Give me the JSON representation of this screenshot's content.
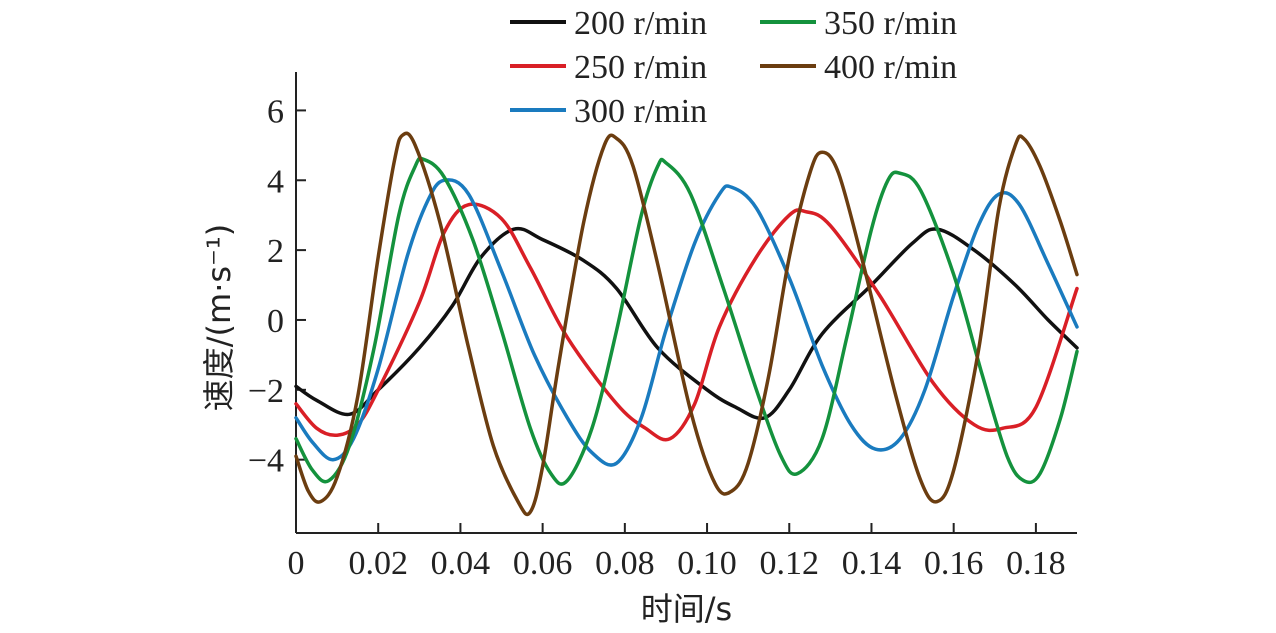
{
  "chart_data": {
    "type": "line",
    "xlabel": "时间/s",
    "ylabel": "速度/(m·s⁻¹)",
    "xlim": [
      0,
      0.19
    ],
    "ylim": [
      -6.1,
      7.1
    ],
    "x_ticks": [
      0,
      0.02,
      0.04,
      0.06,
      0.08,
      0.1,
      0.12,
      0.14,
      0.16,
      0.18
    ],
    "x_tick_labels": [
      "0",
      "0.02",
      "0.04",
      "0.06",
      "0.08",
      "0.10",
      "0.12",
      "0.14",
      "0.16",
      "0.18"
    ],
    "y_ticks": [
      -4,
      -2,
      0,
      2,
      4,
      6
    ],
    "y_tick_labels": [
      "−4",
      "−2",
      "0",
      "2",
      "4",
      "6"
    ],
    "grid": false,
    "legend_position": "top-center",
    "series": [
      {
        "name": "200 r/min",
        "color": "#111111",
        "points": [
          [
            0,
            -1.9
          ],
          [
            0.005,
            -2.3
          ],
          [
            0.013,
            -2.7
          ],
          [
            0.02,
            -2.0
          ],
          [
            0.03,
            -0.8
          ],
          [
            0.038,
            0.4
          ],
          [
            0.045,
            1.8
          ],
          [
            0.053,
            2.6
          ],
          [
            0.06,
            2.3
          ],
          [
            0.07,
            1.7
          ],
          [
            0.078,
            0.9
          ],
          [
            0.088,
            -0.8
          ],
          [
            0.1,
            -2.0
          ],
          [
            0.107,
            -2.5
          ],
          [
            0.114,
            -2.8
          ],
          [
            0.12,
            -2.0
          ],
          [
            0.128,
            -0.4
          ],
          [
            0.14,
            1.0
          ],
          [
            0.15,
            2.2
          ],
          [
            0.156,
            2.6
          ],
          [
            0.165,
            2.0
          ],
          [
            0.175,
            1.0
          ],
          [
            0.183,
            0.0
          ],
          [
            0.19,
            -0.8
          ]
        ]
      },
      {
        "name": "250 r/min",
        "color": "#d91f26",
        "points": [
          [
            0,
            -2.4
          ],
          [
            0.005,
            -3.1
          ],
          [
            0.01,
            -3.3
          ],
          [
            0.015,
            -3.0
          ],
          [
            0.02,
            -2.0
          ],
          [
            0.03,
            0.5
          ],
          [
            0.036,
            2.5
          ],
          [
            0.042,
            3.3
          ],
          [
            0.05,
            2.9
          ],
          [
            0.057,
            1.5
          ],
          [
            0.066,
            -0.5
          ],
          [
            0.078,
            -2.4
          ],
          [
            0.085,
            -3.1
          ],
          [
            0.091,
            -3.4
          ],
          [
            0.097,
            -2.4
          ],
          [
            0.103,
            -0.2
          ],
          [
            0.112,
            1.8
          ],
          [
            0.12,
            3.0
          ],
          [
            0.124,
            3.1
          ],
          [
            0.13,
            2.7
          ],
          [
            0.142,
            0.7
          ],
          [
            0.155,
            -1.8
          ],
          [
            0.165,
            -3.0
          ],
          [
            0.172,
            -3.1
          ],
          [
            0.18,
            -2.5
          ],
          [
            0.19,
            0.9
          ]
        ]
      },
      {
        "name": "300 r/min",
        "color": "#1a7bbf",
        "points": [
          [
            0,
            -2.8
          ],
          [
            0.004,
            -3.5
          ],
          [
            0.009,
            -4.0
          ],
          [
            0.014,
            -3.4
          ],
          [
            0.02,
            -1.4
          ],
          [
            0.027,
            1.8
          ],
          [
            0.032,
            3.4
          ],
          [
            0.036,
            4.0
          ],
          [
            0.042,
            3.6
          ],
          [
            0.05,
            1.4
          ],
          [
            0.058,
            -1.0
          ],
          [
            0.066,
            -2.8
          ],
          [
            0.072,
            -3.8
          ],
          [
            0.078,
            -4.1
          ],
          [
            0.084,
            -2.8
          ],
          [
            0.09,
            -0.3
          ],
          [
            0.097,
            2.2
          ],
          [
            0.103,
            3.6
          ],
          [
            0.106,
            3.8
          ],
          [
            0.112,
            3.2
          ],
          [
            0.12,
            1.2
          ],
          [
            0.128,
            -1.3
          ],
          [
            0.135,
            -3.0
          ],
          [
            0.141,
            -3.7
          ],
          [
            0.147,
            -3.4
          ],
          [
            0.153,
            -2.0
          ],
          [
            0.16,
            0.7
          ],
          [
            0.166,
            2.7
          ],
          [
            0.171,
            3.6
          ],
          [
            0.176,
            3.3
          ],
          [
            0.183,
            1.6
          ],
          [
            0.19,
            -0.2
          ]
        ]
      },
      {
        "name": "350 r/min",
        "color": "#14923d",
        "points": [
          [
            0,
            -3.4
          ],
          [
            0.004,
            -4.3
          ],
          [
            0.008,
            -4.6
          ],
          [
            0.013,
            -3.6
          ],
          [
            0.019,
            -0.8
          ],
          [
            0.025,
            3.0
          ],
          [
            0.029,
            4.4
          ],
          [
            0.031,
            4.6
          ],
          [
            0.036,
            4.1
          ],
          [
            0.043,
            2.3
          ],
          [
            0.05,
            -0.3
          ],
          [
            0.057,
            -3.1
          ],
          [
            0.062,
            -4.4
          ],
          [
            0.066,
            -4.6
          ],
          [
            0.072,
            -3.1
          ],
          [
            0.078,
            -0.3
          ],
          [
            0.084,
            3.0
          ],
          [
            0.088,
            4.4
          ],
          [
            0.09,
            4.5
          ],
          [
            0.096,
            3.6
          ],
          [
            0.104,
            0.9
          ],
          [
            0.112,
            -2.0
          ],
          [
            0.118,
            -3.9
          ],
          [
            0.122,
            -4.4
          ],
          [
            0.128,
            -3.4
          ],
          [
            0.134,
            -0.5
          ],
          [
            0.14,
            2.6
          ],
          [
            0.144,
            4.0
          ],
          [
            0.147,
            4.2
          ],
          [
            0.152,
            3.7
          ],
          [
            0.16,
            1.3
          ],
          [
            0.167,
            -1.6
          ],
          [
            0.173,
            -3.9
          ],
          [
            0.177,
            -4.6
          ],
          [
            0.181,
            -4.4
          ],
          [
            0.186,
            -2.8
          ],
          [
            0.19,
            -0.9
          ]
        ]
      },
      {
        "name": "400 r/min",
        "color": "#6b3d10",
        "points": [
          [
            0,
            -3.9
          ],
          [
            0.003,
            -4.9
          ],
          [
            0.006,
            -5.2
          ],
          [
            0.01,
            -4.5
          ],
          [
            0.015,
            -2.2
          ],
          [
            0.02,
            1.8
          ],
          [
            0.024,
            4.6
          ],
          [
            0.026,
            5.3
          ],
          [
            0.029,
            5.0
          ],
          [
            0.035,
            2.8
          ],
          [
            0.042,
            -0.8
          ],
          [
            0.048,
            -3.6
          ],
          [
            0.054,
            -5.2
          ],
          [
            0.057,
            -5.5
          ],
          [
            0.06,
            -4.2
          ],
          [
            0.064,
            -1.2
          ],
          [
            0.07,
            2.8
          ],
          [
            0.075,
            5.0
          ],
          [
            0.078,
            5.2
          ],
          [
            0.082,
            4.4
          ],
          [
            0.088,
            1.6
          ],
          [
            0.096,
            -2.6
          ],
          [
            0.102,
            -4.7
          ],
          [
            0.106,
            -4.9
          ],
          [
            0.11,
            -4.1
          ],
          [
            0.115,
            -1.6
          ],
          [
            0.12,
            1.8
          ],
          [
            0.125,
            4.2
          ],
          [
            0.128,
            4.8
          ],
          [
            0.132,
            4.2
          ],
          [
            0.138,
            1.6
          ],
          [
            0.146,
            -2.2
          ],
          [
            0.152,
            -4.6
          ],
          [
            0.156,
            -5.2
          ],
          [
            0.16,
            -4.3
          ],
          [
            0.166,
            -0.9
          ],
          [
            0.171,
            3.2
          ],
          [
            0.175,
            5.0
          ],
          [
            0.177,
            5.2
          ],
          [
            0.181,
            4.4
          ],
          [
            0.186,
            2.8
          ],
          [
            0.19,
            1.3
          ]
        ]
      }
    ]
  }
}
